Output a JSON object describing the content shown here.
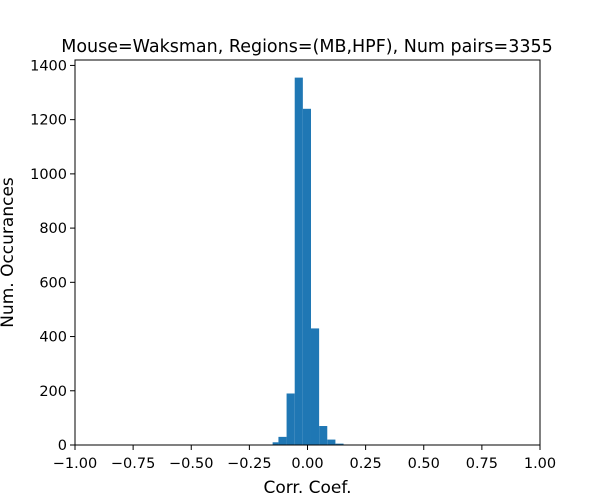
{
  "chart_data": {
    "type": "bar",
    "title": "Mouse=Waksman, Regions=(MB,HPF), Num pairs=3355",
    "xlabel": "Corr. Coef.",
    "ylabel": "Num. Occurances",
    "xlim": [
      -1.0,
      1.0
    ],
    "ylim": [
      0,
      1420
    ],
    "xticks": [
      -1.0,
      -0.75,
      -0.5,
      -0.25,
      0.0,
      0.25,
      0.5,
      0.75,
      1.0
    ],
    "xtick_labels": [
      "−1.00",
      "−0.75",
      "−0.50",
      "−0.25",
      "0.00",
      "0.25",
      "0.50",
      "0.75",
      "1.00"
    ],
    "yticks": [
      0,
      200,
      400,
      600,
      800,
      1000,
      1200,
      1400
    ],
    "ytick_labels": [
      "0",
      "200",
      "400",
      "600",
      "800",
      "1000",
      "1200",
      "1400"
    ],
    "bin_edges": [
      -0.15,
      -0.125,
      -0.09,
      -0.055,
      -0.02,
      0.015,
      0.05,
      0.085,
      0.12,
      0.155
    ],
    "values": [
      10,
      30,
      190,
      1355,
      1240,
      430,
      70,
      20,
      5
    ],
    "bar_color": "#1f77b4",
    "grid": false,
    "legend": "none"
  }
}
